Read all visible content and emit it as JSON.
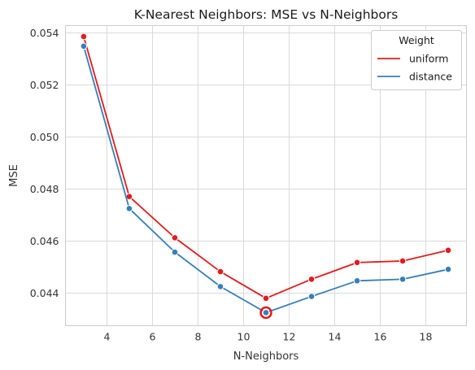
{
  "chart_data": {
    "type": "line",
    "title": "K-Nearest Neighbors: MSE vs N-Neighbors",
    "xlabel": "N-Neighbors",
    "ylabel": "MSE",
    "x": [
      3,
      5,
      7,
      9,
      11,
      13,
      15,
      17,
      19
    ],
    "xlim": [
      2.2,
      19.8
    ],
    "ylim": [
      0.04275,
      0.05425
    ],
    "xticks": [
      4,
      6,
      8,
      10,
      12,
      14,
      16,
      18
    ],
    "yticks": [
      0.044,
      0.046,
      0.048,
      0.05,
      0.052,
      0.054
    ],
    "ytick_labels": [
      "0.044",
      "0.046",
      "0.048",
      "0.050",
      "0.052",
      "0.054"
    ],
    "grid": true,
    "legend": {
      "title": "Weight",
      "placement": "top-right"
    },
    "series": [
      {
        "name": "uniform",
        "color": "#e41a1c",
        "values": [
          0.05383,
          0.0477,
          0.04612,
          0.04482,
          0.0438,
          0.04453,
          0.04517,
          0.04523,
          0.04564
        ]
      },
      {
        "name": "distance",
        "color": "#377eb8",
        "values": [
          0.05346,
          0.04724,
          0.04557,
          0.04425,
          0.04325,
          0.04387,
          0.04447,
          0.04453,
          0.04491
        ]
      }
    ],
    "highlight": {
      "x": 11,
      "y": 0.04325,
      "color": "#e41a1c"
    }
  }
}
